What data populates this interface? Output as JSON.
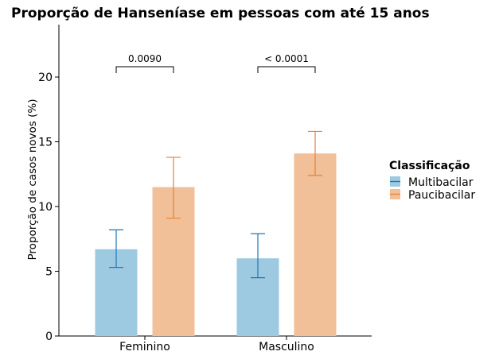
{
  "chart_data": {
    "type": "bar",
    "title": "Proporção de Hanseníase em pessoas com até 15 anos",
    "xlabel": "",
    "ylabel": "Proporção de casos novos (%)",
    "ylim": [
      0,
      24
    ],
    "yticks": [
      0,
      5,
      10,
      15,
      20
    ],
    "categories": [
      "Feminino",
      "Masculino"
    ],
    "grid": false,
    "legend": {
      "title": "Classificação",
      "position": "right"
    },
    "series": [
      {
        "name": "Multibacilar",
        "color": "#9ecae1",
        "error_color": "#1f77b4",
        "values": [
          6.7,
          6.0
        ],
        "err_low": [
          5.3,
          4.5
        ],
        "err_high": [
          8.2,
          7.9
        ]
      },
      {
        "name": "Paucibacilar",
        "color": "#f1bf98",
        "error_color": "#e6823a",
        "values": [
          11.5,
          14.1
        ],
        "err_low": [
          9.1,
          12.4
        ],
        "err_high": [
          13.8,
          15.8
        ]
      }
    ],
    "annotations": [
      {
        "category_index": 0,
        "text": "0.0090",
        "bracket_y": 20.8
      },
      {
        "category_index": 1,
        "text": "< 0.0001",
        "bracket_y": 20.8
      }
    ]
  }
}
